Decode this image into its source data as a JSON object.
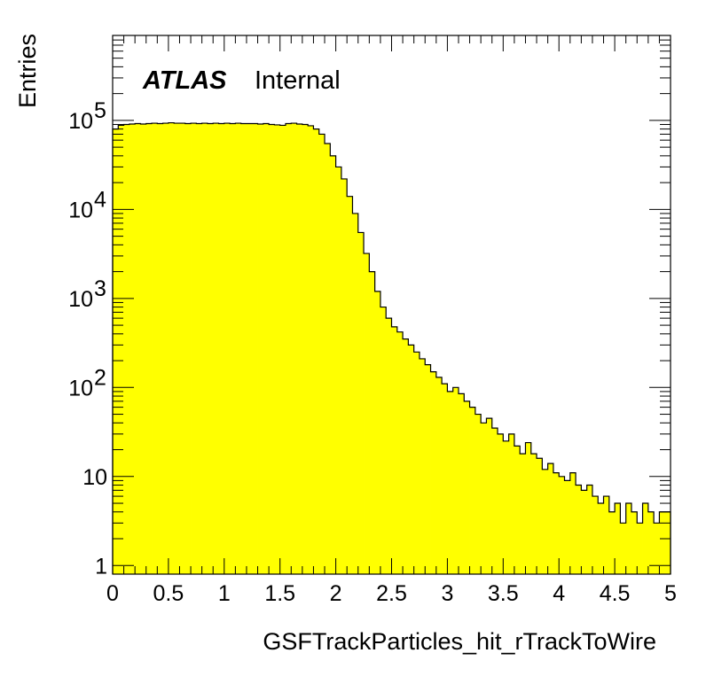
{
  "chart_data": {
    "type": "histogram",
    "xlabel": "GSFTrackParticles_hit_rTrackToWire",
    "ylabel": "Entries",
    "xlim": [
      0,
      5
    ],
    "ylim": [
      0.8,
      900000
    ],
    "yscale": "log",
    "bin_width": 0.05,
    "fill_color": "#ffff00",
    "line_color": "#000000",
    "x_ticks": [
      "0",
      "0.5",
      "1",
      "1.5",
      "2",
      "2.5",
      "3",
      "3.5",
      "4",
      "4.5",
      "5"
    ],
    "y_ticks": [
      {
        "value": 1,
        "base": "1",
        "exp": ""
      },
      {
        "value": 10,
        "base": "10",
        "exp": ""
      },
      {
        "value": 100,
        "base": "10",
        "exp": "2"
      },
      {
        "value": 1000,
        "base": "10",
        "exp": "3"
      },
      {
        "value": 10000,
        "base": "10",
        "exp": "4"
      },
      {
        "value": 100000,
        "base": "10",
        "exp": "5"
      }
    ],
    "values": [
      80000,
      88000,
      90000,
      91000,
      92000,
      91000,
      92000,
      93000,
      92000,
      93000,
      94000,
      93000,
      93000,
      92000,
      93000,
      92000,
      93000,
      92000,
      93000,
      92000,
      93000,
      92000,
      93000,
      92000,
      92000,
      92000,
      91000,
      92000,
      90000,
      89000,
      88000,
      92000,
      93000,
      91000,
      90000,
      87000,
      80000,
      70000,
      55000,
      40000,
      30000,
      22000,
      14000,
      9000,
      5500,
      3200,
      2000,
      1200,
      800,
      600,
      480,
      420,
      350,
      300,
      250,
      210,
      180,
      150,
      130,
      110,
      90,
      100,
      85,
      70,
      60,
      50,
      40,
      45,
      35,
      30,
      25,
      30,
      22,
      18,
      24,
      18,
      16,
      12,
      14,
      11,
      10,
      9,
      11,
      8,
      7,
      8,
      6,
      5,
      6,
      4,
      5,
      3,
      5,
      4,
      3,
      5,
      4,
      3,
      4,
      4
    ],
    "annotations": {
      "atlas": "ATLAS",
      "label": "Internal"
    }
  }
}
